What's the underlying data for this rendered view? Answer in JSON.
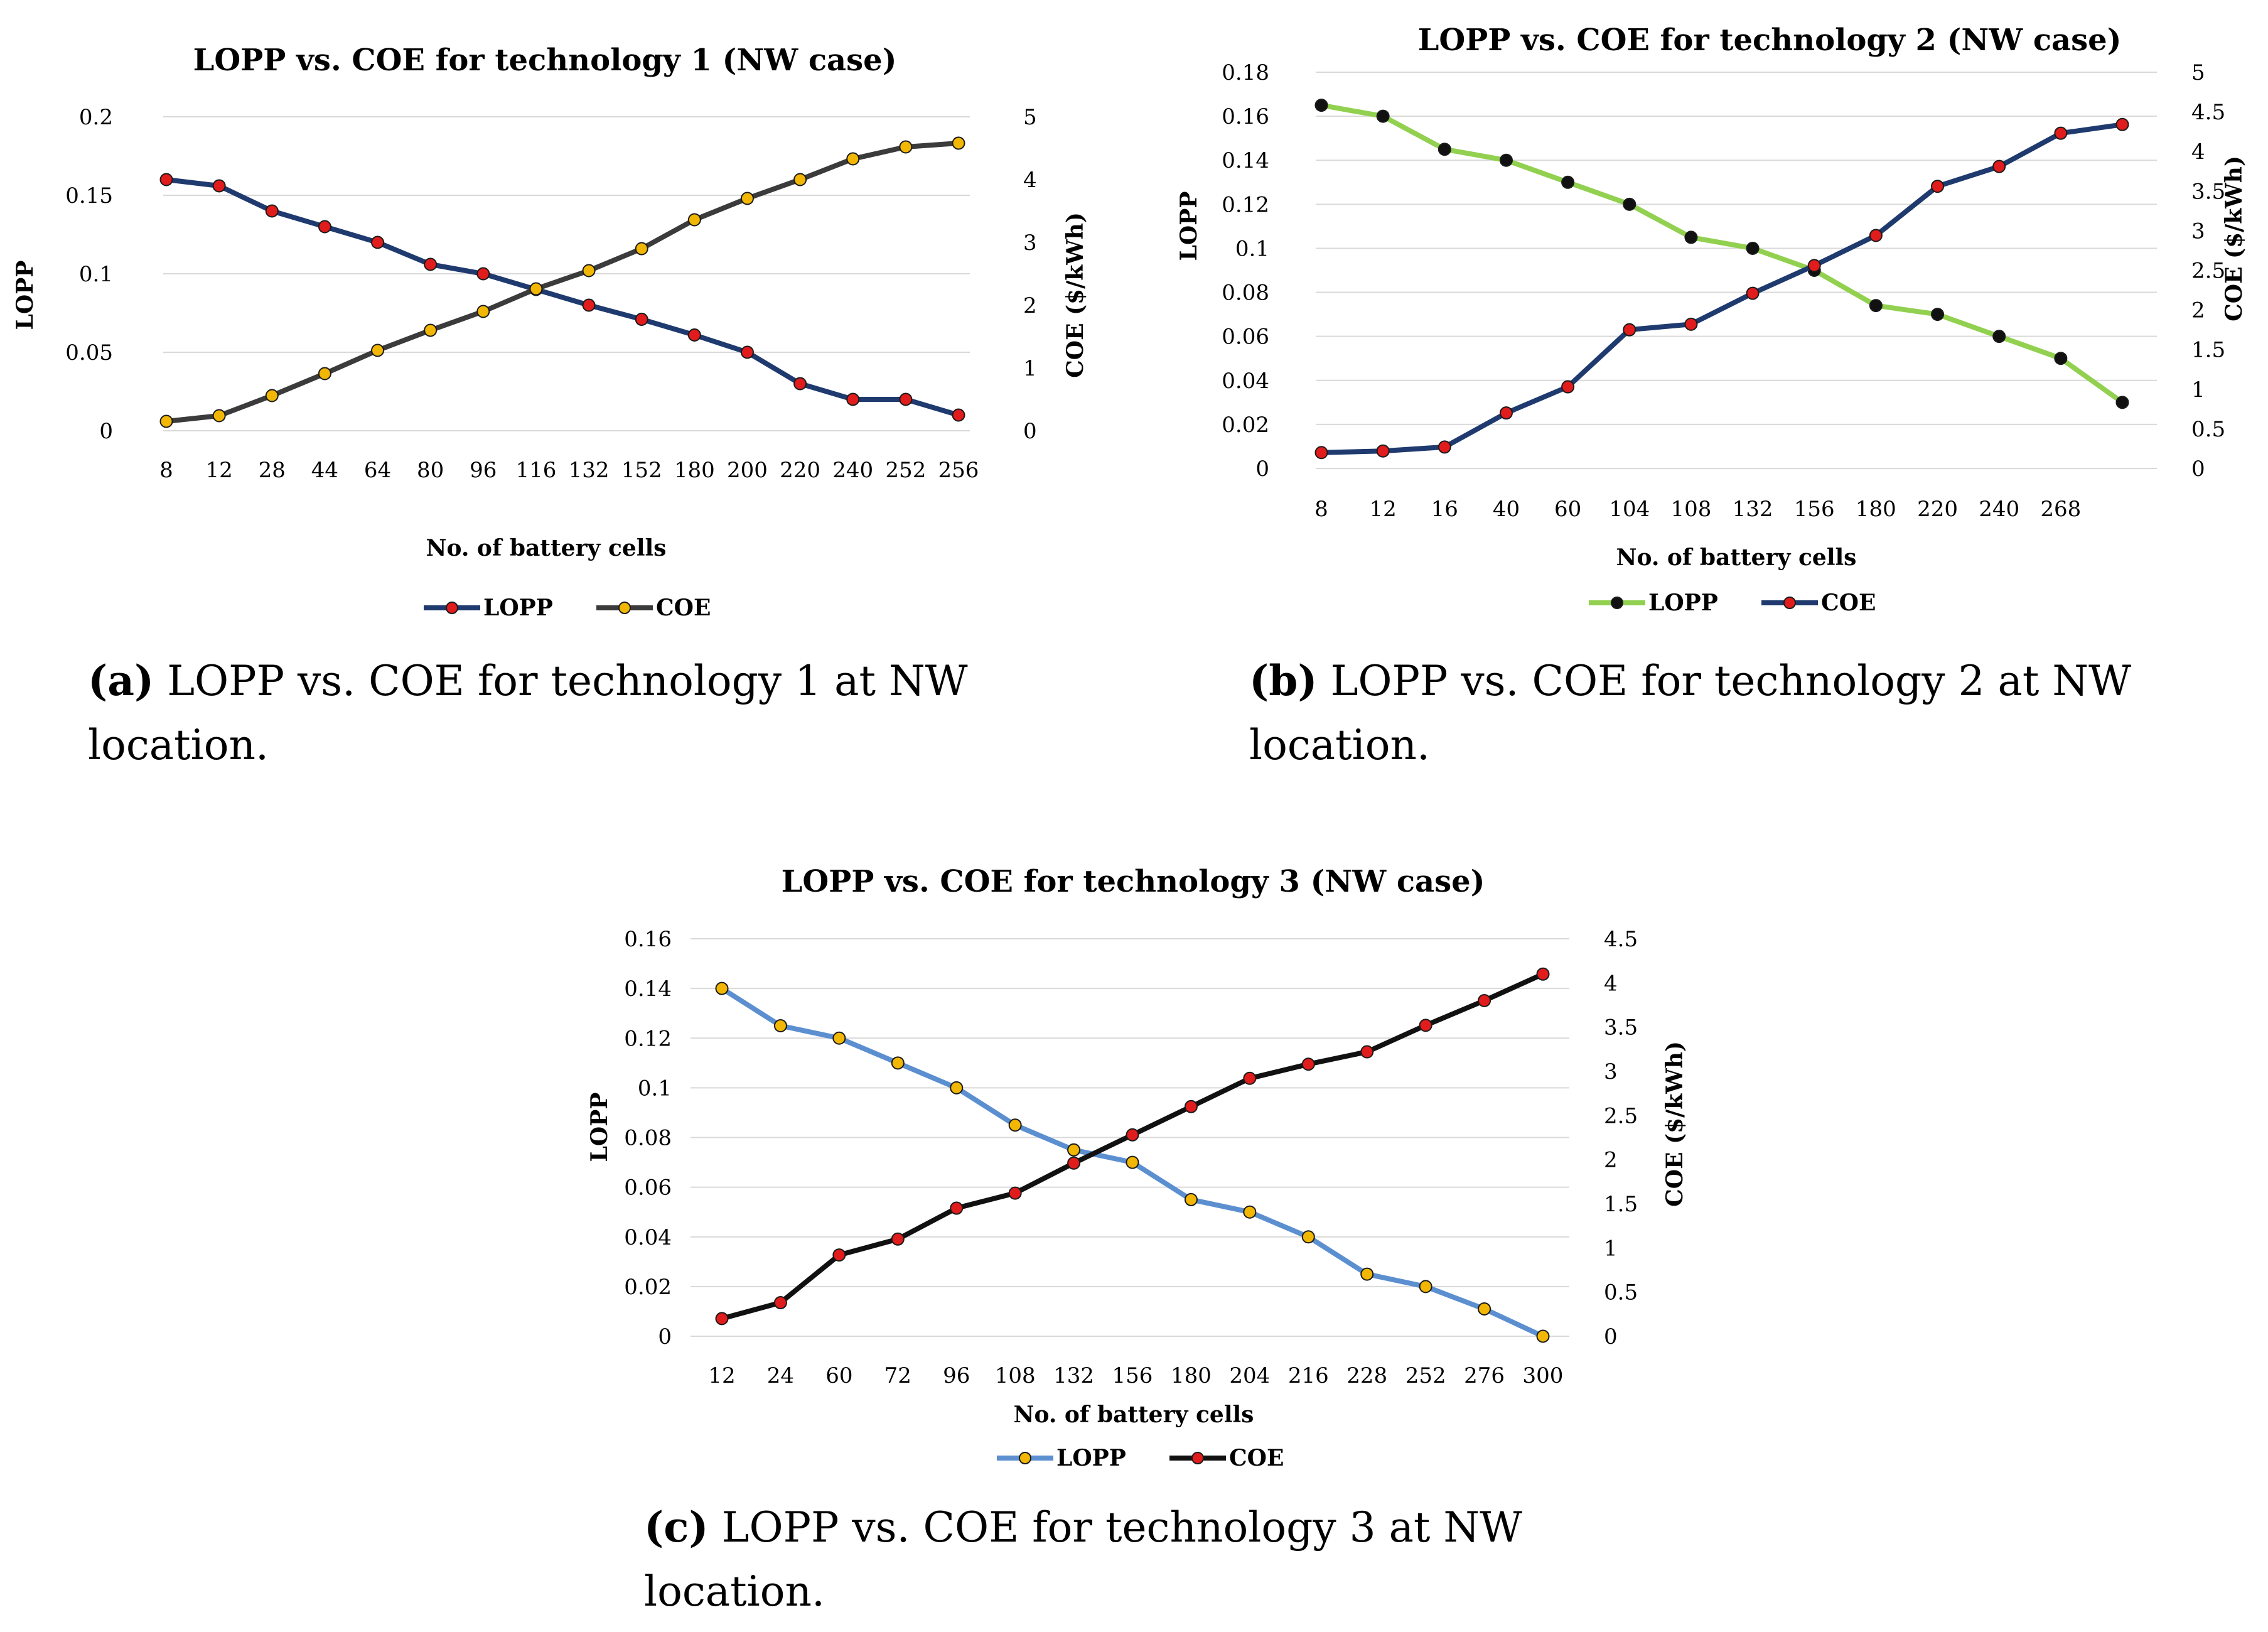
{
  "charts": [
    {
      "id": "a",
      "caption": {
        "tag": "(a)",
        "text": "LOPP vs.  COE for technology 1 at NW location."
      },
      "chart_data": {
        "type": "line",
        "title": "LOPP vs. COE for technology 1 (NW case)",
        "xlabel": "No. of battery cells",
        "ylabel_left": "LOPP",
        "ylabel_right": "COE ($/kWh)",
        "categories": [
          "8",
          "12",
          "28",
          "44",
          "64",
          "80",
          "96",
          "116",
          "132",
          "152",
          "180",
          "200",
          "220",
          "240",
          "252",
          "256"
        ],
        "ylim_left": [
          0,
          0.2
        ],
        "yticks_left": [
          "0",
          "0.05",
          "0.1",
          "0.15",
          "0.2"
        ],
        "ylim_right": [
          0,
          5
        ],
        "yticks_right": [
          "0",
          "1",
          "2",
          "3",
          "4",
          "5"
        ],
        "series": [
          {
            "name": "LOPP",
            "axis": "left",
            "color": "#1f3a6e",
            "marker_color": "#e01c1c",
            "values": [
              0.16,
              0.156,
              0.14,
              0.13,
              0.12,
              0.106,
              0.1,
              0.09,
              0.08,
              0.071,
              0.061,
              0.05,
              0.03,
              0.02,
              0.02,
              0.01
            ]
          },
          {
            "name": "COE",
            "axis": "right",
            "color": "#3b3b3b",
            "marker_color": "#f2b705",
            "values": [
              0.15,
              0.24,
              0.56,
              0.91,
              1.28,
              1.6,
              1.9,
              2.26,
              2.55,
              2.9,
              3.36,
              3.7,
              4.0,
              4.33,
              4.52,
              4.58
            ]
          }
        ],
        "legend": "bottom-center"
      }
    },
    {
      "id": "b",
      "caption": {
        "tag": "(b)",
        "text": "LOPP vs.  COE for technology 2 at NW location."
      },
      "chart_data": {
        "type": "line",
        "title": "LOPP vs. COE for technology 2 (NW case)",
        "xlabel": "No. of battery cells",
        "ylabel_left": "LOPP",
        "ylabel_right": "COE ($/kWh)",
        "categories": [
          "8",
          "12",
          "16",
          "40",
          "60",
          "104",
          "108",
          "132",
          "156",
          "180",
          "220",
          "240",
          "268",
          ""
        ],
        "ylim_left": [
          0,
          0.18
        ],
        "yticks_left": [
          "0",
          "0.02",
          "0.04",
          "0.06",
          "0.08",
          "0.1",
          "0.12",
          "0.14",
          "0.16",
          "0.18"
        ],
        "ylim_right": [
          0,
          5
        ],
        "yticks_right": [
          "0",
          "0.5",
          "1",
          "1.5",
          "2",
          "2.5",
          "3",
          "3.5",
          "4",
          "4.5",
          "5"
        ],
        "series": [
          {
            "name": "LOPP",
            "axis": "left",
            "color": "#92d050",
            "marker_color": "#111111",
            "values": [
              0.165,
              0.16,
              0.145,
              0.14,
              0.13,
              0.12,
              0.105,
              0.1,
              0.09,
              0.074,
              0.07,
              0.06,
              0.05,
              0.03
            ]
          },
          {
            "name": "COE",
            "axis": "right",
            "color": "#1f3a6e",
            "marker_color": "#e01c1c",
            "values": [
              0.2,
              0.22,
              0.27,
              0.7,
              1.03,
              1.75,
              1.82,
              2.21,
              2.56,
              2.94,
              3.56,
              3.81,
              4.23,
              4.34
            ]
          }
        ],
        "legend": "bottom-center"
      }
    },
    {
      "id": "c",
      "caption": {
        "tag": "(c)",
        "text": "LOPP vs.  COE for technology 3 at NW location."
      },
      "chart_data": {
        "type": "line",
        "title": "LOPP vs. COE for technology 3 (NW case)",
        "xlabel": "No. of battery cells",
        "ylabel_left": "LOPP",
        "ylabel_right": "COE ($/kWh)",
        "categories": [
          "12",
          "24",
          "60",
          "72",
          "96",
          "108",
          "132",
          "156",
          "180",
          "204",
          "216",
          "228",
          "252",
          "276",
          "300"
        ],
        "ylim_left": [
          0,
          0.16
        ],
        "yticks_left": [
          "0",
          "0.02",
          "0.04",
          "0.06",
          "0.08",
          "0.1",
          "0.12",
          "0.14",
          "0.16"
        ],
        "ylim_right": [
          0,
          4.5
        ],
        "yticks_right": [
          "0",
          "0.5",
          "1",
          "1.5",
          "2",
          "2.5",
          "3",
          "3.5",
          "4",
          "4.5"
        ],
        "series": [
          {
            "name": "LOPP",
            "axis": "left",
            "color": "#5b8fd0",
            "marker_color": "#f2b705",
            "values": [
              0.14,
              0.125,
              0.12,
              0.11,
              0.1,
              0.085,
              0.075,
              0.07,
              0.055,
              0.05,
              0.04,
              0.025,
              0.02,
              0.011,
              0
            ]
          },
          {
            "name": "COE",
            "axis": "right",
            "color": "#111111",
            "marker_color": "#e01c1c",
            "values": [
              0.2,
              0.38,
              0.92,
              1.1,
              1.45,
              1.62,
              1.96,
              2.28,
              2.6,
              2.92,
              3.08,
              3.22,
              3.52,
              3.8,
              4.1
            ]
          }
        ],
        "legend": "bottom-center"
      }
    }
  ]
}
